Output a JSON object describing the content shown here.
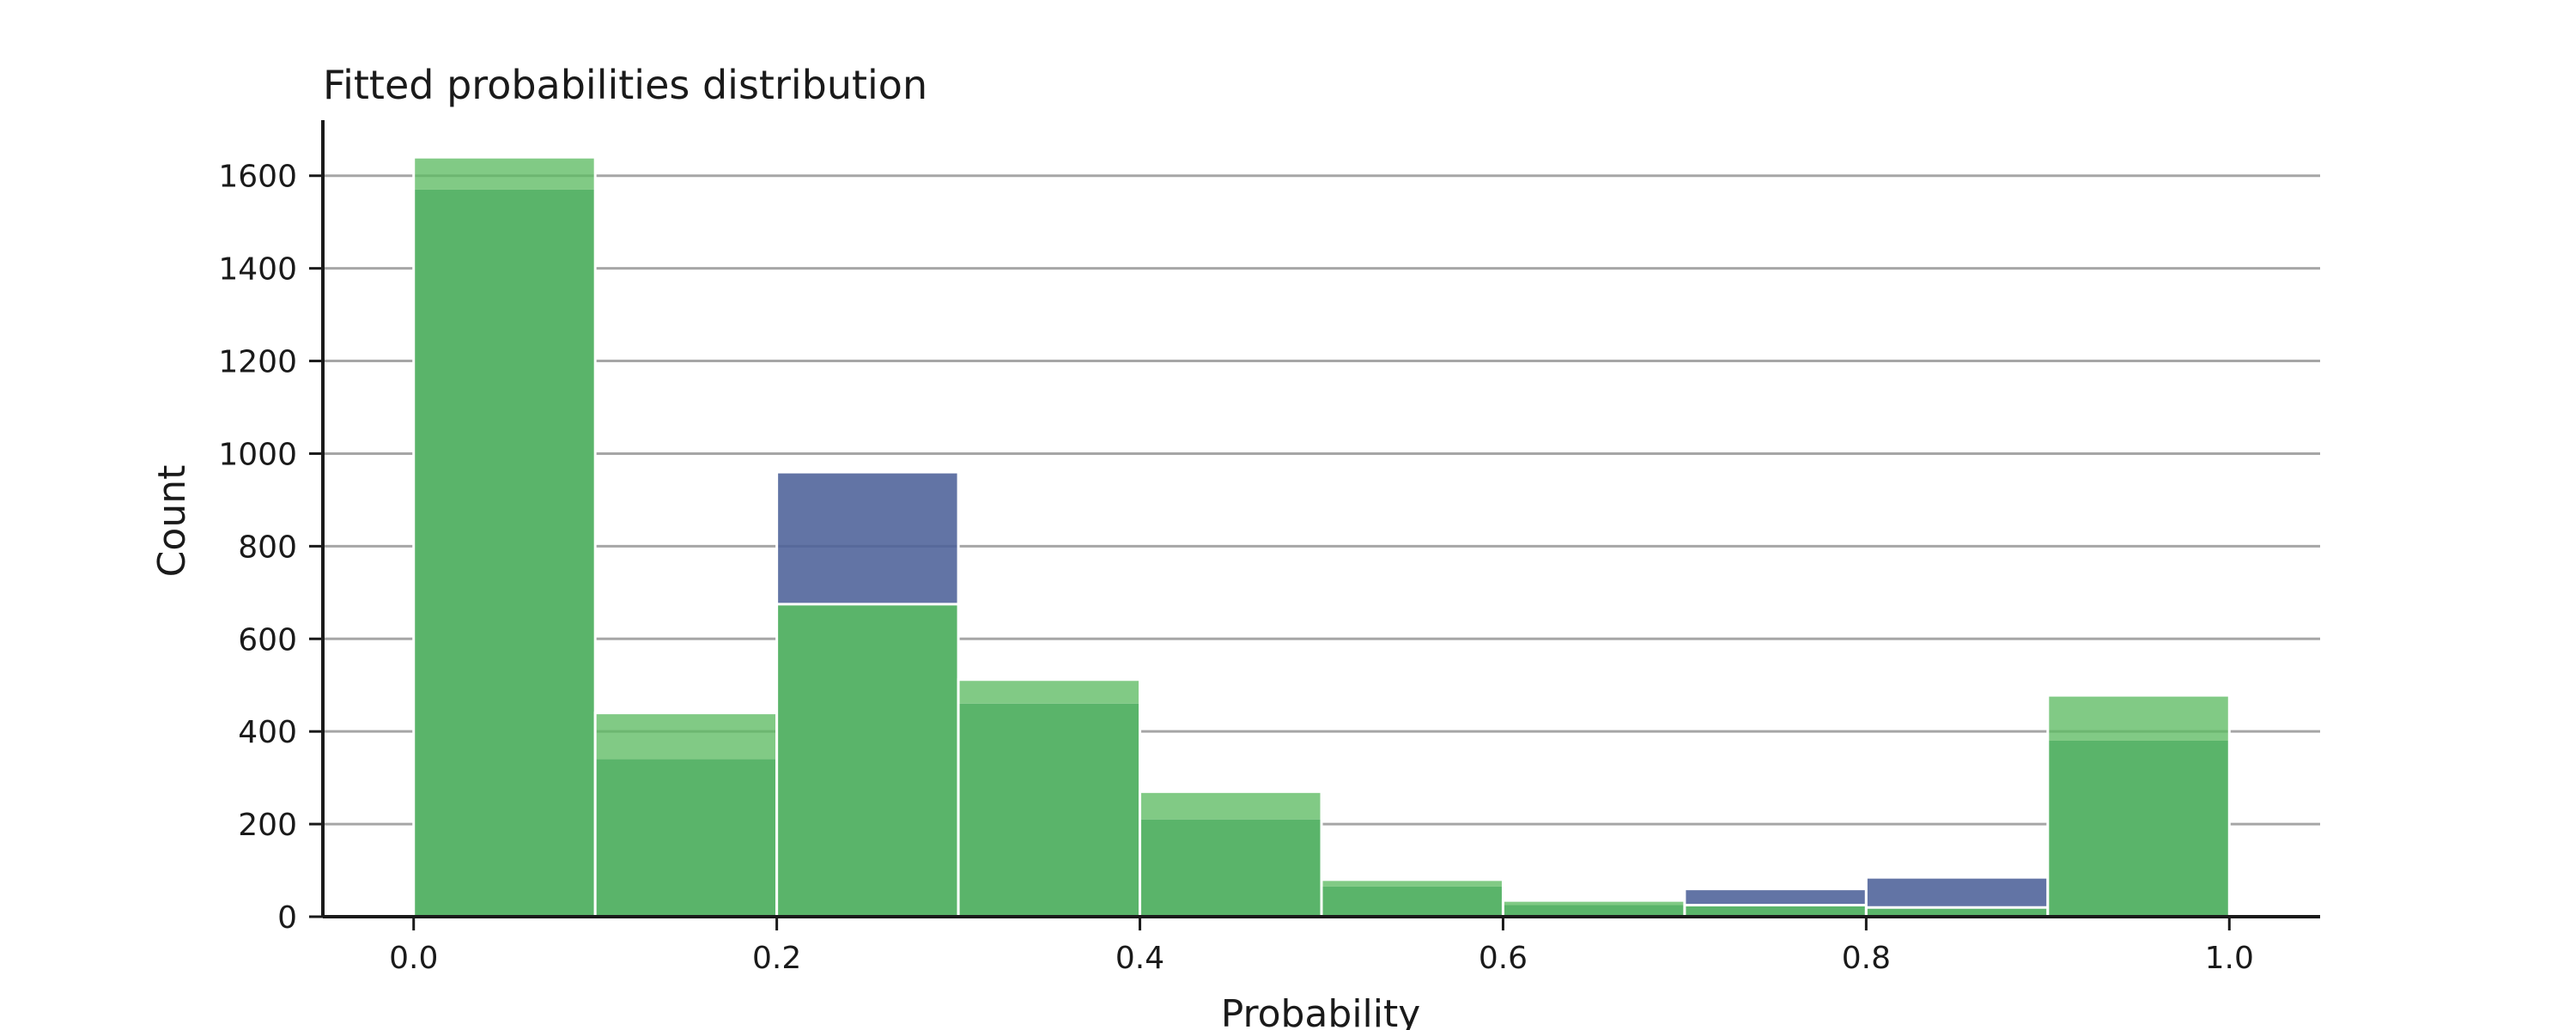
{
  "chart_data": {
    "type": "histogram",
    "title": "Fitted probabilities distribution",
    "xlabel": "Probability",
    "ylabel": "Count",
    "xlim": [
      -0.05,
      1.05
    ],
    "ylim": [
      0,
      1720
    ],
    "grid": "horizontal",
    "bin_edges": [
      0.0,
      0.1,
      0.2,
      0.3,
      0.4,
      0.5,
      0.6,
      0.7,
      0.8,
      0.9,
      1.0
    ],
    "x_ticks": [
      0.0,
      0.2,
      0.4,
      0.6,
      0.8,
      1.0
    ],
    "x_tick_labels": [
      "0.0",
      "0.2",
      "0.4",
      "0.6",
      "0.8",
      "1.0"
    ],
    "y_ticks": [
      0,
      200,
      400,
      600,
      800,
      1000,
      1200,
      1400,
      1600
    ],
    "y_tick_labels": [
      "0",
      "200",
      "400",
      "600",
      "800",
      "1000",
      "1200",
      "1400",
      "1600"
    ],
    "series": [
      {
        "color": "#4c6199",
        "values": [
          1570,
          340,
          960,
          460,
          210,
          65,
          25,
          60,
          85,
          380
        ]
      },
      {
        "color": "#5dbb63",
        "values": [
          1640,
          440,
          675,
          512,
          270,
          80,
          35,
          25,
          20,
          478
        ]
      }
    ],
    "overlap_color": "#5ab46a"
  }
}
